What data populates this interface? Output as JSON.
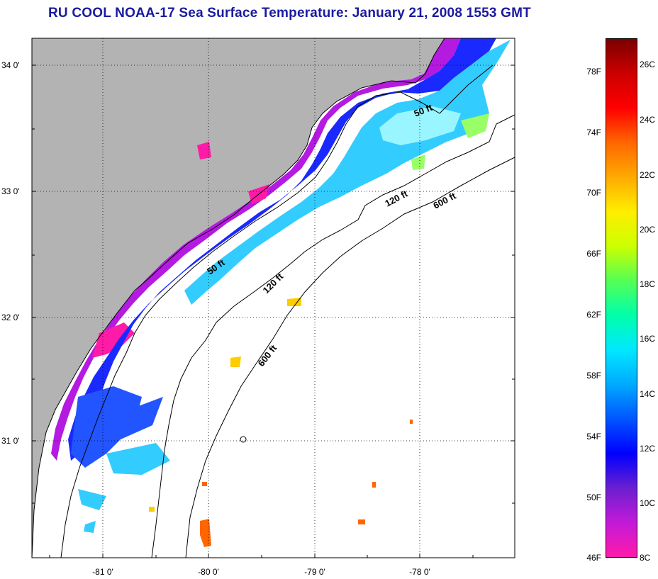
{
  "title": "RU COOL  NOAA-17  Sea Surface Temperature:  January 21, 2008 1553 GMT",
  "map": {
    "lat_ticks": [
      "34 0'",
      "33 0'",
      "32 0'",
      "31 0'"
    ],
    "lon_ticks": [
      "-81 0'",
      "-80 0'",
      "-79 0'",
      "-78 0'"
    ],
    "isobath_labels": [
      "50 ft",
      "120 ft",
      "600 ft",
      "50 ft",
      "120 ft",
      "600 ft"
    ],
    "colors": {
      "land": "#b3b3b3",
      "water_nodata": "#ffffff",
      "contour": "#000000"
    }
  },
  "colorbar": {
    "fahrenheit_labels": [
      "78F",
      "74F",
      "70F",
      "66F",
      "62F",
      "58F",
      "54F",
      "50F",
      "46F"
    ],
    "celsius_labels": [
      "26C",
      "24C",
      "22C",
      "20C",
      "18C",
      "16C",
      "14C",
      "12C",
      "10C",
      "8C"
    ],
    "gradient_stops": [
      "#ff1aa8",
      "#c21ad8",
      "#6a1fd0",
      "#0000ff",
      "#0055ff",
      "#00aaff",
      "#00e8ff",
      "#00ffaa",
      "#55ff55",
      "#ccff00",
      "#ffee00",
      "#ffaa00",
      "#ff6600",
      "#ff0000",
      "#cc0000",
      "#7a0000"
    ]
  }
}
